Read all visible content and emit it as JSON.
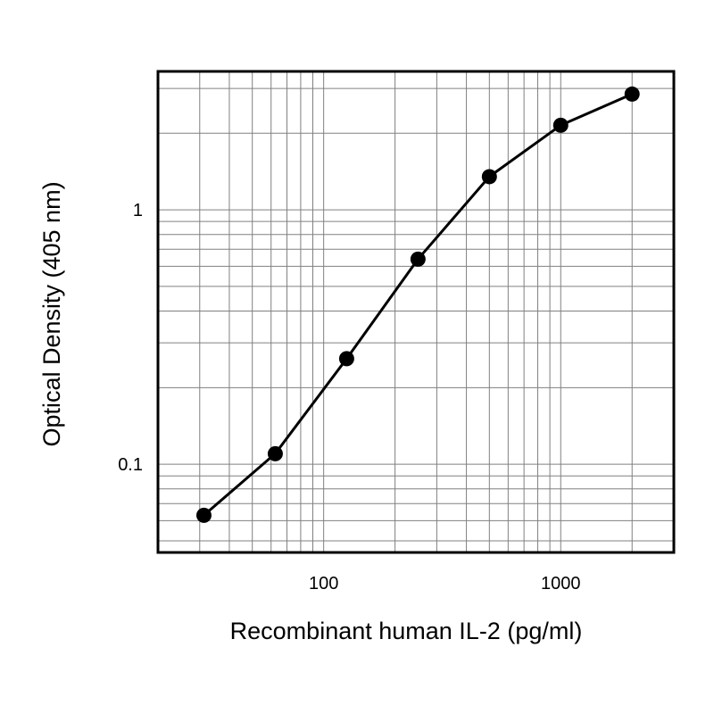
{
  "chart_data": {
    "type": "line",
    "xlabel": "Recombinant human IL-2 (pg/ml)",
    "ylabel": "Optical Density (405 nm)",
    "x_scale": "log",
    "y_scale": "log",
    "xlim": [
      20,
      3000
    ],
    "ylim": [
      0.045,
      3.5
    ],
    "x_ticks": [
      100,
      1000
    ],
    "x_tick_labels": [
      "100",
      "1000"
    ],
    "y_ticks": [
      0.1,
      1
    ],
    "y_tick_labels": [
      "0.1",
      "1"
    ],
    "grid": true,
    "series": [
      {
        "x": [
          31.25,
          62.5,
          125,
          250,
          500,
          1000,
          2000
        ],
        "y": [
          0.063,
          0.11,
          0.26,
          0.64,
          1.35,
          2.15,
          2.85
        ]
      }
    ],
    "colors": {
      "line": "#000000",
      "grid": "#808080",
      "frame": "#000000"
    }
  }
}
